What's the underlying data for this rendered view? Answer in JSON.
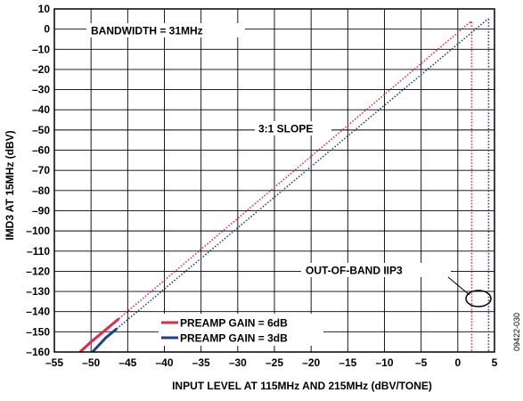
{
  "chart_data": {
    "type": "line",
    "title": "",
    "xlabel": "INPUT LEVEL AT 115MHz AND 215MHz (dBV/TONE)",
    "ylabel": "IMD3 AT 15MHz (dBV)",
    "xlim": [
      -55,
      5
    ],
    "ylim": [
      -160,
      10
    ],
    "x_ticks": [
      -55,
      -50,
      -45,
      -40,
      -35,
      -30,
      -25,
      -20,
      -15,
      -10,
      -5,
      0,
      5
    ],
    "y_ticks": [
      10,
      0,
      -10,
      -20,
      -30,
      -40,
      -50,
      -60,
      -70,
      -80,
      -90,
      -100,
      -110,
      -120,
      -130,
      -140,
      -150,
      -160
    ],
    "x_tick_labels": [
      "–55",
      "–50",
      "–45",
      "–40",
      "–35",
      "–30",
      "–25",
      "–20",
      "–15",
      "–10",
      "–5",
      "0",
      "5"
    ],
    "y_tick_labels": [
      "10",
      "0",
      "–10",
      "–20",
      "–30",
      "–40",
      "–50",
      "–60",
      "–70",
      "–80",
      "–90",
      "–100",
      "–110",
      "–120",
      "–130",
      "–140",
      "–150",
      "–160"
    ],
    "grid": true,
    "legend_position": "bottom-left",
    "annotations": {
      "bandwidth": "BANDWIDTH = 31MHz",
      "slope": "3:1 SLOPE",
      "iip3": "OUT-OF-BAND IIP3"
    },
    "figure_id": "09422-030",
    "series": [
      {
        "name": "PREAMP GAIN = 6dB",
        "color": "#e0294a",
        "measured": {
          "x": [
            -51.5,
            -50,
            -48,
            -46.2
          ],
          "y": [
            -160,
            -155,
            -149,
            -143.5
          ]
        },
        "extrapolation": {
          "x": [
            -46.2,
            1.7
          ],
          "y": [
            -143.5,
            3.5
          ]
        },
        "iip3_x": 1.9
      },
      {
        "name": "PREAMP GAIN = 3dB",
        "color": "#1c3f94",
        "measured": {
          "x": [
            -49.8,
            -48,
            -46.5
          ],
          "y": [
            -160,
            -153,
            -148.5
          ]
        },
        "extrapolation": {
          "x": [
            -46.5,
            4.1
          ],
          "y": [
            -148.5,
            5
          ]
        },
        "iip3_x": 4.2
      }
    ]
  }
}
